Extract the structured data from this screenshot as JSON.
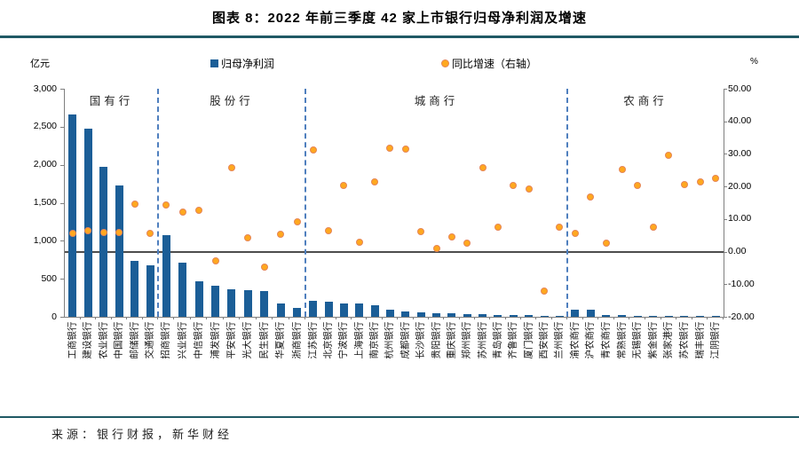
{
  "title": "图表 8：2022 年前三季度 42 家上市银行归母净利润及增速",
  "source": "来源：银行财报，新华财经",
  "legend": {
    "bars": "归母净利润",
    "dots": "同比增速（右轴）"
  },
  "axes": {
    "left_unit": "亿元",
    "right_unit": "%",
    "left_ticks": [
      "3,000",
      "2,500",
      "2,000",
      "1,500",
      "1,000",
      "500",
      "0"
    ],
    "right_ticks": [
      "50.00",
      "40.00",
      "30.00",
      "20.00",
      "10.00",
      "0.00",
      "-10.00",
      "-20.00"
    ]
  },
  "colors": {
    "bar": "#1B5E97",
    "dot_fill": "#FFA81E",
    "dot_stroke": "#E58557",
    "divider": "#4F7FBE",
    "rule": "#1F5964",
    "zero_line": "#4D4D4D",
    "axis": "#7F7F7F"
  },
  "chart_data": {
    "type": "bar",
    "title": "图表 8：2022 年前三季度 42 家上市银行归母净利润及增速",
    "bar_series_name": "归母净利润",
    "scatter_series_name": "同比增速（右轴）",
    "left_axis": {
      "label": "亿元",
      "range": [
        0,
        3000
      ],
      "applies_to": "bars"
    },
    "right_axis": {
      "label": "%",
      "range": [
        -20,
        50
      ],
      "applies_to": "dots"
    },
    "grid": false,
    "legend_position": "top",
    "groups": [
      {
        "label": "国有行",
        "banks": [
          {
            "name": "工商银行",
            "profit": 2658,
            "growth": 5.6
          },
          {
            "name": "建设银行",
            "profit": 2473,
            "growth": 6.5
          },
          {
            "name": "农业银行",
            "profit": 1975,
            "growth": 5.8
          },
          {
            "name": "中国银行",
            "profit": 1731,
            "growth": 5.8
          },
          {
            "name": "邮储银行",
            "profit": 738,
            "growth": 14.5
          },
          {
            "name": "交通银行",
            "profit": 678,
            "growth": 5.5
          }
        ]
      },
      {
        "label": "股份行",
        "banks": [
          {
            "name": "招商银行",
            "profit": 1069,
            "growth": 14.2
          },
          {
            "name": "兴业银行",
            "profit": 718,
            "growth": 12.1
          },
          {
            "name": "中信银行",
            "profit": 471,
            "growth": 12.8
          },
          {
            "name": "浦发银行",
            "profit": 410,
            "growth": -2.8
          },
          {
            "name": "平安银行",
            "profit": 367,
            "growth": 25.8
          },
          {
            "name": "光大银行",
            "profit": 350,
            "growth": 4.3
          },
          {
            "name": "民生银行",
            "profit": 338,
            "growth": -4.8
          },
          {
            "name": "华夏银行",
            "profit": 171,
            "growth": 5.4
          },
          {
            "name": "浙商银行",
            "profit": 115,
            "growth": 9.1
          }
        ]
      },
      {
        "label": "城商行",
        "banks": [
          {
            "name": "江苏银行",
            "profit": 205,
            "growth": 31.3
          },
          {
            "name": "北京银行",
            "profit": 202,
            "growth": 6.5
          },
          {
            "name": "宁波银行",
            "profit": 172,
            "growth": 20.2
          },
          {
            "name": "上海银行",
            "profit": 172,
            "growth": 3.0
          },
          {
            "name": "南京银行",
            "profit": 150,
            "growth": 21.3
          },
          {
            "name": "杭州银行",
            "profit": 93,
            "growth": 31.8
          },
          {
            "name": "成都银行",
            "profit": 68,
            "growth": 31.6
          },
          {
            "name": "长沙银行",
            "profit": 54,
            "growth": 6.2
          },
          {
            "name": "贵阳银行",
            "profit": 44,
            "growth": 1.0
          },
          {
            "name": "重庆银行",
            "profit": 42,
            "growth": 4.4
          },
          {
            "name": "郑州银行",
            "profit": 33,
            "growth": 2.7
          },
          {
            "name": "苏州银行",
            "profit": 31,
            "growth": 25.9
          },
          {
            "name": "青岛银行",
            "profit": 28,
            "growth": 7.6
          },
          {
            "name": "齐鲁银行",
            "profit": 27,
            "growth": 20.2
          },
          {
            "name": "厦门银行",
            "profit": 19,
            "growth": 19.3
          },
          {
            "name": "西安银行",
            "profit": 18,
            "growth": -12.0
          },
          {
            "name": "兰州银行",
            "profit": 13,
            "growth": 7.6
          }
        ]
      },
      {
        "label": "农商行",
        "banks": [
          {
            "name": "渝农商行",
            "profit": 97,
            "growth": 5.5
          },
          {
            "name": "沪农商行",
            "profit": 90,
            "growth": 16.9
          },
          {
            "name": "青农商行",
            "profit": 25,
            "growth": 2.5
          },
          {
            "name": "常熟银行",
            "profit": 21,
            "growth": 25.1
          },
          {
            "name": "无锡银行",
            "profit": 16,
            "growth": 20.2
          },
          {
            "name": "紫金银行",
            "profit": 13,
            "growth": 7.6
          },
          {
            "name": "张家港行",
            "profit": 13,
            "growth": 29.7
          },
          {
            "name": "苏农银行",
            "profit": 13,
            "growth": 20.7
          },
          {
            "name": "瑞丰银行",
            "profit": 12,
            "growth": 21.5
          },
          {
            "name": "江阴银行",
            "profit": 11,
            "growth": 22.6
          }
        ]
      }
    ]
  }
}
